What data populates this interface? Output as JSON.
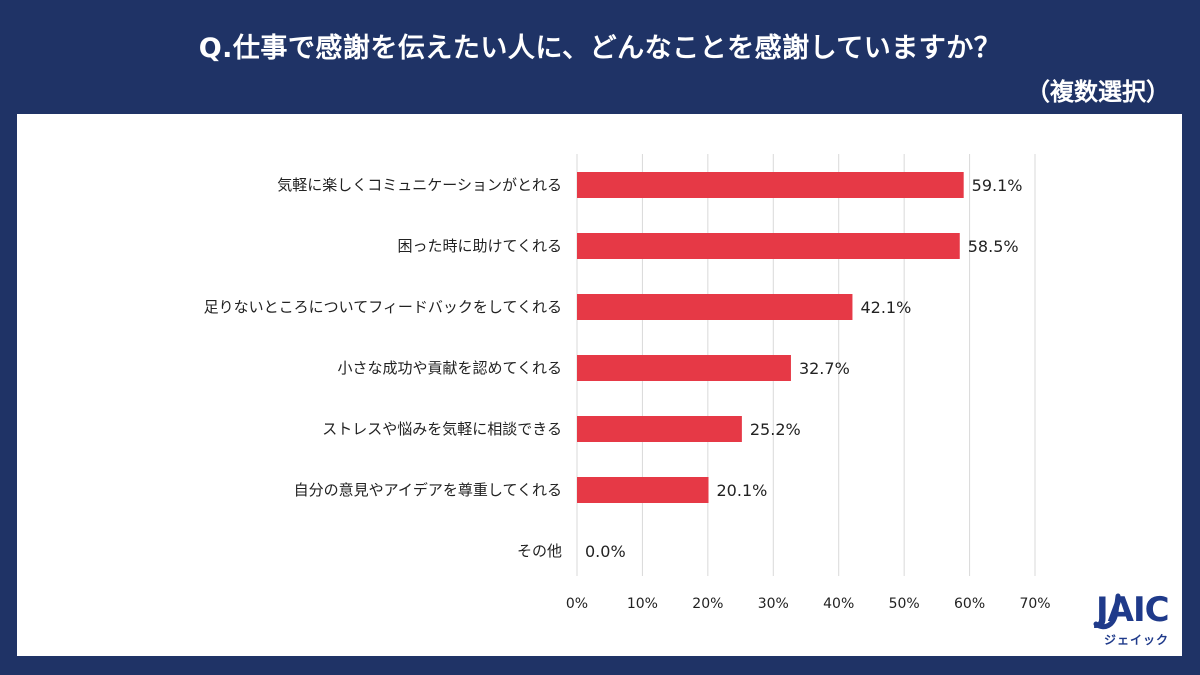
{
  "title": "Q.仕事で感謝を伝えたい人に、どんなことを感謝していますか？",
  "subtitle": "（複数選択）",
  "chart_data": {
    "type": "bar",
    "orientation": "horizontal",
    "title": "Q.仕事で感謝を伝えたい人に、どんなことを感謝していますか？",
    "subtitle": "（複数選択）",
    "categories": [
      "気軽に楽しくコミュニケーションがとれる",
      "困った時に助けてくれる",
      "足りないところについてフィードバックをしてくれる",
      "小さな成功や貢献を認めてくれる",
      "ストレスや悩みを気軽に相談できる",
      "自分の意見やアイデアを尊重してくれる",
      "その他"
    ],
    "values": [
      59.1,
      58.5,
      42.1,
      32.7,
      25.2,
      20.1,
      0.0
    ],
    "value_labels": [
      "59.1%",
      "58.5%",
      "42.1%",
      "32.7%",
      "25.2%",
      "20.1%",
      "0.0%"
    ],
    "xlim": [
      0,
      70
    ],
    "xticks": [
      0,
      10,
      20,
      30,
      40,
      50,
      60,
      70
    ],
    "xtick_labels": [
      "0%",
      "10%",
      "20%",
      "30%",
      "40%",
      "50%",
      "60%",
      "70%"
    ],
    "xlabel": "",
    "ylabel": "",
    "grid": true,
    "bar_color": "#e63946"
  },
  "logo": {
    "text": "JAIC",
    "kana": "ジェイック"
  }
}
